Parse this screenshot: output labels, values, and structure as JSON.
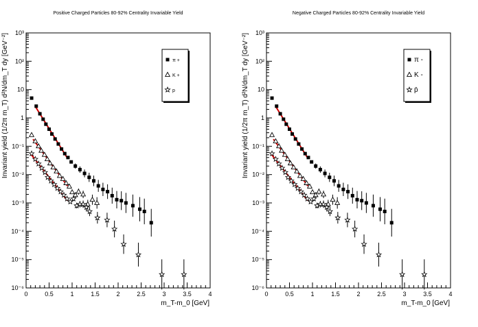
{
  "chart_data": [
    {
      "type": "scatter",
      "title": "Positive Charged Particles 80-92% Centrality Invariable Yield",
      "xlabel": "m_T-m_0 [GeV]",
      "ylabel": "Invariant yield (1/2π m_T) d²N/dm_T dy [GeV⁻²]",
      "xlim": [
        0,
        4
      ],
      "ylim": [
        1e-06,
        1000
      ],
      "yscale": "log",
      "x_ticks": [
        "0",
        "0.5",
        "1",
        "1.5",
        "2",
        "2.5",
        "3",
        "3.5",
        "4"
      ],
      "y_ticks": [
        "10⁻⁶",
        "10⁻⁵",
        "10⁻⁴",
        "10⁻³",
        "10⁻²",
        "10⁻¹",
        "1",
        "10",
        "10²",
        "10³"
      ],
      "legend": {
        "placement": "top-right"
      },
      "series": [
        {
          "name": "π +",
          "marker": "filled-square",
          "x": [
            0.12,
            0.22,
            0.3,
            0.37,
            0.43,
            0.5,
            0.56,
            0.63,
            0.7,
            0.77,
            0.84,
            0.91,
            0.98,
            1.07,
            1.17,
            1.27,
            1.37,
            1.47,
            1.57,
            1.67,
            1.77,
            1.87,
            1.97,
            2.07,
            2.17,
            2.32,
            2.47,
            2.57,
            2.72
          ],
          "y": [
            5,
            2.6,
            1.4,
            0.9,
            0.6,
            0.4,
            0.27,
            0.18,
            0.12,
            0.08,
            0.055,
            0.04,
            0.028,
            0.02,
            0.015,
            0.011,
            0.008,
            0.006,
            0.004,
            0.003,
            0.0025,
            0.0018,
            0.0013,
            0.0012,
            0.001,
            0.0008,
            0.0006,
            0.0005,
            0.0002
          ],
          "fit_range": [
            0.2,
            0.9
          ]
        },
        {
          "name": "K +",
          "marker": "open-triangle",
          "x": [
            0.12,
            0.2,
            0.27,
            0.33,
            0.4,
            0.46,
            0.52,
            0.59,
            0.66,
            0.73,
            0.8,
            0.87,
            0.94,
            1.0,
            1.07,
            1.14,
            1.24,
            1.34,
            1.44,
            1.54
          ],
          "y": [
            0.25,
            0.15,
            0.1,
            0.07,
            0.05,
            0.035,
            0.025,
            0.018,
            0.013,
            0.009,
            0.007,
            0.005,
            0.0038,
            0.0024,
            0.0019,
            0.0025,
            0.002,
            0.0009,
            0.0013,
            0.001
          ],
          "fit_range": [
            0.15,
            0.9
          ]
        },
        {
          "name": "p",
          "marker": "open-star",
          "x": [
            0.12,
            0.2,
            0.27,
            0.34,
            0.41,
            0.47,
            0.54,
            0.61,
            0.68,
            0.75,
            0.82,
            0.89,
            0.96,
            1.03,
            1.1,
            1.17,
            1.24,
            1.31,
            1.38,
            1.55,
            1.76,
            1.92,
            2.12,
            2.44,
            2.95,
            3.43
          ],
          "y": [
            0.055,
            0.035,
            0.024,
            0.017,
            0.012,
            0.008,
            0.006,
            0.0045,
            0.0033,
            0.0025,
            0.0019,
            0.0014,
            0.0011,
            0.0014,
            0.0008,
            0.0009,
            0.0009,
            0.0007,
            0.0005,
            0.0003,
            0.00025,
            0.00012,
            3.5e-05,
            1.5e-05,
            3e-06,
            3e-06
          ],
          "fit_range": [
            0.1,
            0.9
          ]
        }
      ]
    },
    {
      "type": "scatter",
      "title": "Negative Charged Particles 80-92% Centrality Invariable Yield",
      "xlabel": "m_T-m_0 [GeV]",
      "ylabel": "Invariant yield (1/2π m_T) d²N/dm_T dy [GeV⁻²]",
      "xlim": [
        0,
        4
      ],
      "ylim": [
        1e-06,
        1000
      ],
      "yscale": "log",
      "x_ticks": [
        "0",
        "0.5",
        "1",
        "1.5",
        "2",
        "2.5",
        "3",
        "3.5",
        "4"
      ],
      "y_ticks": [
        "10⁻⁶",
        "10⁻⁵",
        "10⁻⁴",
        "10⁻³",
        "10⁻²",
        "10⁻¹",
        "1",
        "10",
        "10²",
        "10³"
      ],
      "legend": {
        "placement": "top-right"
      },
      "series": [
        {
          "name": "π -",
          "marker": "filled-square",
          "x": [
            0.12,
            0.22,
            0.3,
            0.37,
            0.43,
            0.5,
            0.56,
            0.63,
            0.7,
            0.77,
            0.84,
            0.91,
            0.98,
            1.07,
            1.17,
            1.27,
            1.37,
            1.47,
            1.57,
            1.67,
            1.77,
            1.87,
            1.97,
            2.07,
            2.17,
            2.32,
            2.47,
            2.57,
            2.72
          ],
          "y": [
            5,
            2.6,
            1.4,
            0.9,
            0.6,
            0.4,
            0.27,
            0.18,
            0.12,
            0.08,
            0.055,
            0.04,
            0.028,
            0.02,
            0.015,
            0.011,
            0.008,
            0.006,
            0.004,
            0.003,
            0.0025,
            0.0018,
            0.0013,
            0.0012,
            0.001,
            0.0008,
            0.0006,
            0.0005,
            0.0002
          ],
          "fit_range": [
            0.2,
            0.9
          ]
        },
        {
          "name": "K -",
          "marker": "open-triangle",
          "x": [
            0.12,
            0.2,
            0.27,
            0.33,
            0.4,
            0.46,
            0.52,
            0.59,
            0.66,
            0.73,
            0.8,
            0.87,
            0.94,
            1.0,
            1.07,
            1.14,
            1.24,
            1.34,
            1.44,
            1.54
          ],
          "y": [
            0.25,
            0.15,
            0.1,
            0.07,
            0.05,
            0.035,
            0.025,
            0.018,
            0.013,
            0.009,
            0.007,
            0.005,
            0.0038,
            0.0024,
            0.0019,
            0.0025,
            0.002,
            0.0009,
            0.0013,
            0.001
          ],
          "fit_range": [
            0.15,
            0.9
          ]
        },
        {
          "name": "p̄",
          "marker": "open-star",
          "x": [
            0.12,
            0.2,
            0.27,
            0.34,
            0.41,
            0.47,
            0.54,
            0.61,
            0.68,
            0.75,
            0.82,
            0.89,
            0.96,
            1.03,
            1.1,
            1.17,
            1.24,
            1.31,
            1.38,
            1.55,
            1.76,
            1.92,
            2.12,
            2.44,
            2.95,
            3.43
          ],
          "y": [
            0.055,
            0.035,
            0.024,
            0.017,
            0.012,
            0.008,
            0.006,
            0.0045,
            0.0033,
            0.0025,
            0.0019,
            0.0014,
            0.0011,
            0.0014,
            0.0008,
            0.0009,
            0.0009,
            0.0007,
            0.0005,
            0.0003,
            0.00025,
            0.00012,
            3.5e-05,
            1.5e-05,
            3e-06,
            3e-06
          ],
          "fit_range": [
            0.1,
            0.9
          ]
        }
      ]
    }
  ]
}
